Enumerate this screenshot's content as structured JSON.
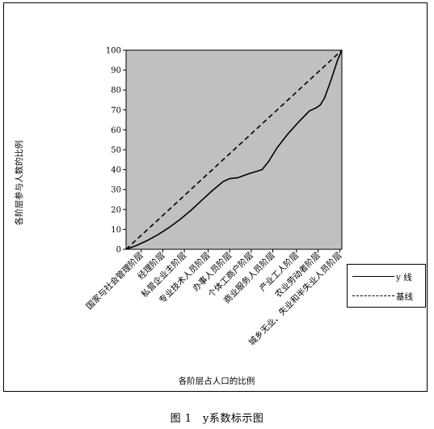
{
  "caption": "图 1　y系数标示图",
  "legend_position": "right",
  "chart_data": {
    "type": "line",
    "xlabel": "各阶层占人口的比例",
    "ylabel": "各阶层参与人数的比例",
    "ylim": [
      0,
      100
    ],
    "yticks": [
      0,
      10,
      20,
      30,
      40,
      50,
      60,
      70,
      80,
      90,
      100
    ],
    "xlim": [
      0,
      100
    ],
    "grid": false,
    "plot_background": "#c0c0c0",
    "categories": [
      {
        "label": "国家与社会管理阶层",
        "x": 7
      },
      {
        "label": "经理阶层",
        "x": 17
      },
      {
        "label": "私营企业主阶层",
        "x": 27
      },
      {
        "label": "专业技术人员阶层",
        "x": 38
      },
      {
        "label": "办事人员阶层",
        "x": 48
      },
      {
        "label": "个体工商户阶层",
        "x": 58
      },
      {
        "label": "商业服务人员阶层",
        "x": 68
      },
      {
        "label": "产业工人阶层",
        "x": 79
      },
      {
        "label": "农业劳动者阶层",
        "x": 89
      },
      {
        "label": "城乡无业、失业和半失业人员阶层",
        "x": 99
      }
    ],
    "series": [
      {
        "name": "y 线",
        "style": "solid",
        "color": "#000000",
        "points": [
          [
            0,
            0
          ],
          [
            5,
            2
          ],
          [
            10,
            4.5
          ],
          [
            15,
            7.5
          ],
          [
            20,
            11
          ],
          [
            25,
            15
          ],
          [
            30,
            19.5
          ],
          [
            35,
            24.5
          ],
          [
            40,
            29.5
          ],
          [
            45,
            34
          ],
          [
            48,
            35.5
          ],
          [
            52,
            36
          ],
          [
            57,
            38
          ],
          [
            60,
            39
          ],
          [
            63,
            40
          ],
          [
            66,
            44
          ],
          [
            70,
            51
          ],
          [
            75,
            58
          ],
          [
            80,
            64
          ],
          [
            85,
            69.5
          ],
          [
            88,
            71
          ],
          [
            90,
            72.5
          ],
          [
            92,
            76
          ],
          [
            95,
            85
          ],
          [
            98,
            95
          ],
          [
            100,
            100
          ]
        ]
      },
      {
        "name": "基线",
        "style": "dashed",
        "color": "#000000",
        "points": [
          [
            0,
            0
          ],
          [
            5,
            5
          ],
          [
            10,
            10
          ],
          [
            15,
            15
          ],
          [
            20,
            20
          ],
          [
            25,
            25
          ],
          [
            30,
            30
          ],
          [
            35,
            35
          ],
          [
            40,
            40
          ],
          [
            45,
            45
          ],
          [
            50,
            50
          ],
          [
            55,
            55
          ],
          [
            60,
            60
          ],
          [
            65,
            65
          ],
          [
            70,
            70
          ],
          [
            75,
            75
          ],
          [
            80,
            80
          ],
          [
            85,
            85
          ],
          [
            90,
            90
          ],
          [
            95,
            95
          ],
          [
            100,
            100
          ]
        ]
      }
    ]
  }
}
